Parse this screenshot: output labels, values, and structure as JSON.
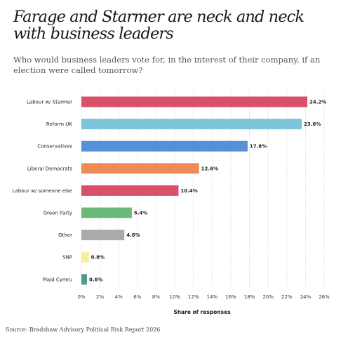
{
  "title": "Farage and Starmer are neck and neck with business leaders",
  "subtitle": "Who would business leaders vote for, in the interest of their company, if an election were called tomorrow?",
  "source": "Source: Bradshaw Advisory Political Risk Report 2026",
  "chart_data": {
    "type": "bar",
    "orientation": "horizontal",
    "title": "Farage and Starmer are neck and neck with business leaders",
    "subtitle": "Who would business leaders vote for, in the interest of their company, if an election were called tomorrow?",
    "xlabel": "Share of responses",
    "ylabel": "",
    "xlim": [
      0,
      26
    ],
    "x_ticks": [
      0,
      2,
      4,
      6,
      8,
      10,
      12,
      14,
      16,
      18,
      20,
      22,
      24,
      26
    ],
    "tick_suffix": "%",
    "grid": "vertical dashed",
    "legend": "none",
    "categories": [
      "Labour w/ Starmer",
      "Reform UK",
      "Conservatives",
      "Liberal Democrats",
      "Labour w/ someone else",
      "Green Party",
      "Other",
      "SNP",
      "Plaid Cymru"
    ],
    "values": [
      24.2,
      23.6,
      17.8,
      12.6,
      10.4,
      5.4,
      4.6,
      0.8,
      0.6
    ],
    "value_labels": [
      "24.2%",
      "23.6%",
      "17.8%",
      "12.6%",
      "10.4%",
      "5.4%",
      "4.6%",
      "0.8%",
      "0.6%"
    ],
    "colors": [
      "#d9506a",
      "#7ec4d8",
      "#5590d9",
      "#f08a55",
      "#d9506a",
      "#6bb87a",
      "#aaaaaa",
      "#f7eea0",
      "#4f9a8a"
    ]
  }
}
